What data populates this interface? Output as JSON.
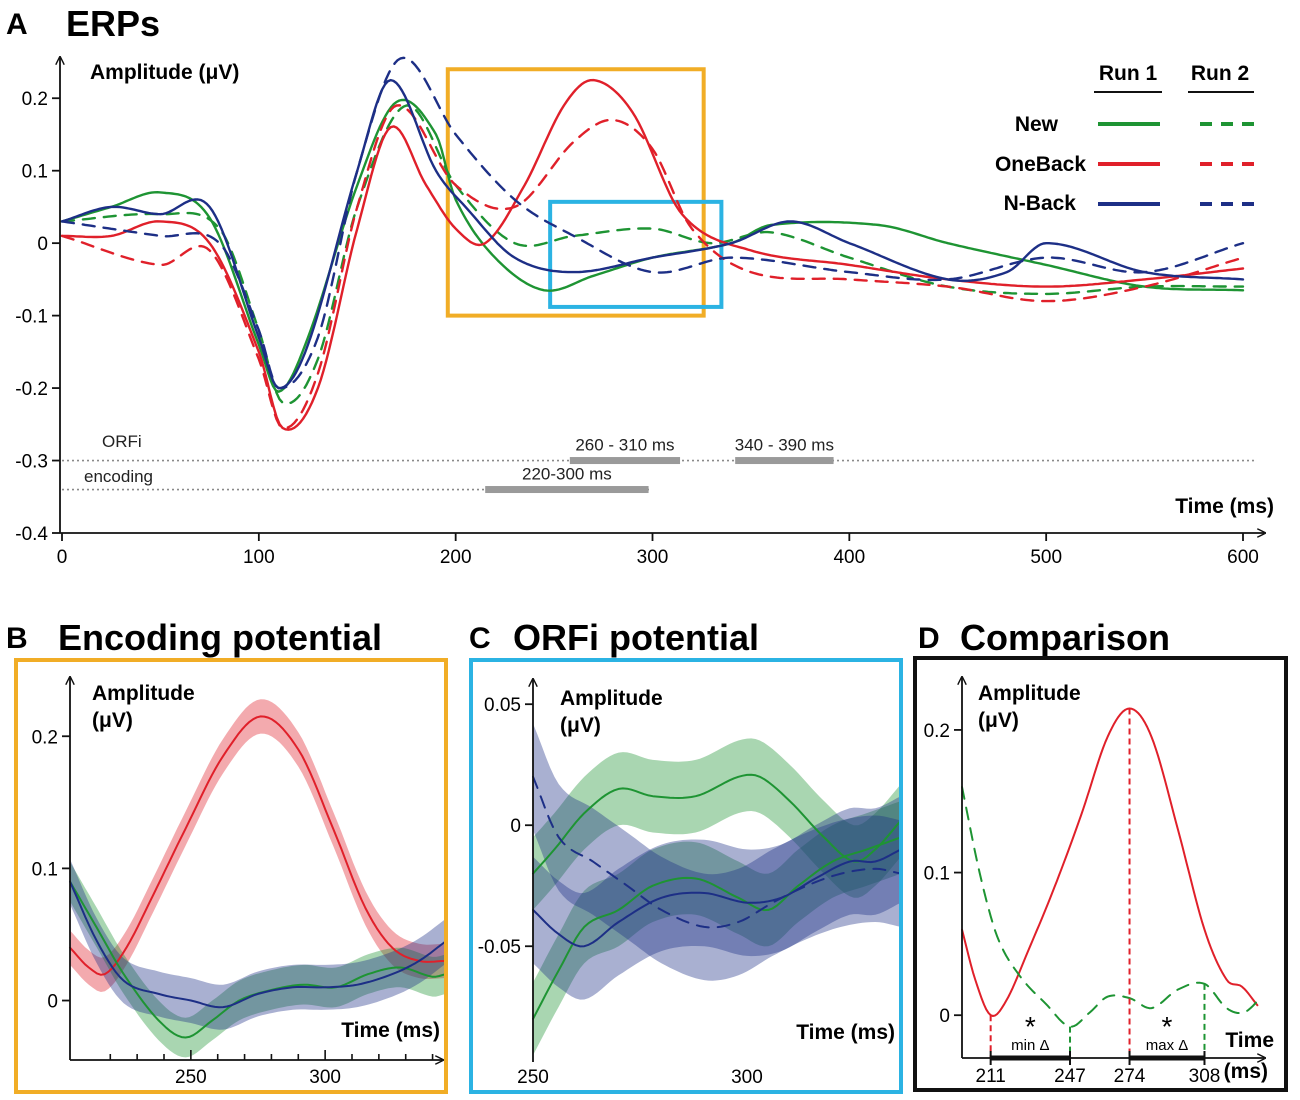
{
  "colors": {
    "new": "#1e9433",
    "oneback": "#e0202a",
    "nback": "#1d2f86",
    "orange": "#f1ad26",
    "cyan": "#2bb3e3",
    "black": "#111111",
    "gray": "#999999"
  },
  "chart_data": [
    {
      "id": "A",
      "panel_label": "A",
      "title": "ERPs",
      "type": "line",
      "ylabel": "Amplitude (μV)",
      "xlabel": "Time (ms)",
      "xlim": [
        0,
        600
      ],
      "ylim": [
        -0.4,
        0.25
      ],
      "xticks": [
        0,
        100,
        200,
        300,
        400,
        500,
        600
      ],
      "yticks": [
        0.2,
        0.1,
        0,
        -0.1,
        -0.2,
        -0.3,
        -0.4
      ],
      "ytick_labels": [
        "0.2",
        "0.1",
        "0",
        "-0.1",
        "-0.2",
        "-0.3",
        "-0.4"
      ],
      "legend": {
        "col1": "Run 1",
        "col2": "Run 2",
        "rows": [
          "New",
          "OneBack",
          "N-Back"
        ]
      },
      "series": [
        {
          "name": "New",
          "run": "Run 1",
          "color": "new",
          "dash": false,
          "x": [
            0,
            25,
            50,
            75,
            100,
            110,
            125,
            150,
            170,
            190,
            200,
            220,
            245,
            270,
            300,
            340,
            360,
            415,
            450,
            500,
            550,
            600
          ],
          "y": [
            0.03,
            0.05,
            0.07,
            0.035,
            -0.14,
            -0.205,
            -0.13,
            0.08,
            0.195,
            0.15,
            0.06,
            -0.02,
            -0.065,
            -0.045,
            -0.02,
            0.0,
            0.025,
            0.025,
            0.0,
            -0.03,
            -0.06,
            -0.065
          ]
        },
        {
          "name": "New",
          "run": "Run 2",
          "color": "new",
          "dash": true,
          "x": [
            0,
            50,
            80,
            100,
            112,
            130,
            150,
            175,
            200,
            230,
            260,
            300,
            330,
            360,
            400,
            450,
            500,
            550,
            600
          ],
          "y": [
            0.03,
            0.04,
            0.02,
            -0.12,
            -0.22,
            -0.16,
            0.05,
            0.19,
            0.08,
            0.0,
            0.01,
            0.02,
            0.0,
            0.015,
            -0.02,
            -0.06,
            -0.07,
            -0.06,
            -0.06
          ]
        },
        {
          "name": "OneBack",
          "run": "Run 1",
          "color": "oneback",
          "dash": false,
          "x": [
            0,
            25,
            50,
            75,
            100,
            112,
            130,
            150,
            167,
            185,
            200,
            215,
            235,
            255,
            270,
            290,
            315,
            350,
            400,
            450,
            500,
            550,
            600
          ],
          "y": [
            0.01,
            0.01,
            0.03,
            0.0,
            -0.15,
            -0.255,
            -0.2,
            0.02,
            0.16,
            0.08,
            0.02,
            0.0,
            0.08,
            0.19,
            0.225,
            0.18,
            0.04,
            -0.01,
            -0.03,
            -0.05,
            -0.06,
            -0.05,
            -0.035
          ]
        },
        {
          "name": "OneBack",
          "run": "Run 2",
          "color": "oneback",
          "dash": true,
          "x": [
            0,
            50,
            75,
            100,
            112,
            130,
            150,
            170,
            200,
            230,
            260,
            280,
            300,
            320,
            350,
            400,
            450,
            500,
            550,
            600
          ],
          "y": [
            0.01,
            -0.03,
            -0.01,
            -0.16,
            -0.255,
            -0.18,
            0.05,
            0.19,
            0.08,
            0.05,
            0.14,
            0.17,
            0.13,
            0.02,
            -0.04,
            -0.05,
            -0.06,
            -0.08,
            -0.06,
            -0.02
          ]
        },
        {
          "name": "N-Back",
          "run": "Run 1",
          "color": "nback",
          "dash": false,
          "x": [
            0,
            25,
            50,
            75,
            100,
            110,
            125,
            150,
            167,
            190,
            205,
            230,
            260,
            300,
            340,
            370,
            400,
            450,
            480,
            500,
            550,
            600
          ],
          "y": [
            0.03,
            0.05,
            0.04,
            0.05,
            -0.13,
            -0.2,
            -0.14,
            0.1,
            0.225,
            0.1,
            0.05,
            -0.02,
            -0.04,
            -0.02,
            0.0,
            0.03,
            0.0,
            -0.05,
            -0.04,
            0.0,
            -0.04,
            -0.05
          ]
        },
        {
          "name": "N-Back",
          "run": "Run 2",
          "color": "nback",
          "dash": true,
          "x": [
            0,
            50,
            80,
            100,
            110,
            130,
            150,
            172,
            200,
            230,
            260,
            300,
            340,
            400,
            450,
            500,
            550,
            600
          ],
          "y": [
            0.03,
            0.01,
            0.0,
            -0.12,
            -0.2,
            -0.13,
            0.1,
            0.255,
            0.15,
            0.06,
            0.01,
            -0.04,
            -0.02,
            -0.04,
            -0.05,
            -0.02,
            -0.04,
            0.0
          ]
        }
      ],
      "annotations": {
        "orfi_label": "ORFi",
        "encoding_label": "encoding",
        "orfi_windows": [
          {
            "range": [
              258,
              314
            ],
            "label": "260 - 310 ms"
          },
          {
            "range": [
              342,
              392
            ],
            "label": "340 - 390 ms"
          }
        ],
        "encoding_windows": [
          {
            "range": [
              215,
              298
            ],
            "label": "220-300 ms"
          }
        ],
        "orfi_level": -0.3,
        "encoding_level": -0.34,
        "boxes": [
          {
            "color": "orange",
            "x": [
              196,
              326
            ],
            "y": [
              -0.1,
              0.24
            ]
          },
          {
            "color": "cyan",
            "x": [
              248,
              335
            ],
            "y": [
              -0.088,
              0.057
            ]
          }
        ]
      }
    },
    {
      "id": "B",
      "panel_label": "B",
      "title": "Encoding potential",
      "type": "line",
      "ylabel_line1": "Amplitude",
      "ylabel_line2": "(μV)",
      "xlabel": "Time (ms)",
      "xlim": [
        205,
        345
      ],
      "ylim": [
        -0.045,
        0.235
      ],
      "xticks": [
        250,
        300
      ],
      "yticks": [
        0.2,
        0.1,
        0
      ],
      "ytick_labels": [
        "0.2",
        "0.1",
        "0"
      ],
      "series": [
        {
          "name": "OneBack",
          "color": "oneback",
          "x": [
            205,
            212,
            218,
            226,
            236,
            248,
            262,
            276,
            290,
            303,
            315,
            325,
            335,
            345
          ],
          "y": [
            0.04,
            0.025,
            0.02,
            0.04,
            0.08,
            0.13,
            0.185,
            0.215,
            0.19,
            0.13,
            0.07,
            0.04,
            0.03,
            0.03
          ],
          "band": 0.013
        },
        {
          "name": "New",
          "color": "new",
          "x": [
            205,
            215,
            225,
            238,
            248,
            258,
            268,
            280,
            292,
            304,
            316,
            328,
            340,
            345
          ],
          "y": [
            0.09,
            0.055,
            0.02,
            -0.015,
            -0.028,
            -0.015,
            0.0,
            0.008,
            0.012,
            0.01,
            0.02,
            0.025,
            0.018,
            0.02
          ],
          "band": 0.015
        },
        {
          "name": "N-Back",
          "color": "nback",
          "x": [
            205,
            215,
            225,
            238,
            250,
            262,
            275,
            288,
            300,
            312,
            325,
            335,
            345
          ],
          "y": [
            0.09,
            0.045,
            0.015,
            0.005,
            0.0,
            -0.005,
            0.005,
            0.01,
            0.01,
            0.012,
            0.02,
            0.03,
            0.045
          ],
          "band": 0.017
        }
      ]
    },
    {
      "id": "C",
      "panel_label": "C",
      "title": "ORFi potential",
      "type": "line",
      "ylabel_line1": "Amplitude",
      "ylabel_line2": "(μV)",
      "xlabel": "Time (ms)",
      "xlim": [
        250,
        336
      ],
      "ylim": [
        -0.097,
        0.06
      ],
      "xticks": [
        250,
        300
      ],
      "yticks": [
        0.05,
        0,
        -0.05
      ],
      "ytick_labels": [
        "0.05",
        "0",
        "-0.05"
      ],
      "series": [
        {
          "name": "New",
          "run": "Run 1",
          "color": "new",
          "dash": false,
          "band": 0.015,
          "x": [
            250,
            255,
            262,
            270,
            278,
            288,
            298,
            303,
            310,
            318,
            325,
            330,
            336
          ],
          "y": [
            -0.02,
            -0.01,
            0.005,
            0.015,
            0.012,
            0.012,
            0.02,
            0.02,
            0.01,
            -0.005,
            -0.015,
            -0.01,
            0.002
          ]
        },
        {
          "name": "New",
          "run": "Run 2",
          "color": "new",
          "dash": false,
          "band": 0.015,
          "x": [
            250,
            256,
            262,
            270,
            278,
            288,
            298,
            305,
            312,
            320,
            328,
            336
          ],
          "y": [
            -0.08,
            -0.06,
            -0.042,
            -0.035,
            -0.025,
            -0.022,
            -0.03,
            -0.035,
            -0.025,
            -0.015,
            -0.01,
            -0.005
          ]
        },
        {
          "name": "N-Back",
          "run": "Run 1",
          "color": "nback",
          "dash": false,
          "band": 0.022,
          "x": [
            250,
            256,
            262,
            270,
            280,
            290,
            300,
            308,
            316,
            324,
            330,
            336
          ],
          "y": [
            -0.035,
            -0.045,
            -0.05,
            -0.04,
            -0.03,
            -0.028,
            -0.032,
            -0.03,
            -0.022,
            -0.015,
            -0.015,
            -0.01
          ]
        },
        {
          "name": "N-Back",
          "run": "Run 2",
          "color": "nback",
          "dash": true,
          "band": 0.022,
          "x": [
            250,
            256,
            264,
            272,
            280,
            290,
            298,
            306,
            314,
            322,
            330,
            336
          ],
          "y": [
            0.02,
            -0.005,
            -0.015,
            -0.025,
            -0.035,
            -0.042,
            -0.04,
            -0.032,
            -0.025,
            -0.02,
            -0.018,
            -0.02
          ]
        }
      ]
    },
    {
      "id": "D",
      "panel_label": "D",
      "title": "Comparison",
      "type": "line",
      "ylabel_line1": "Amplitude",
      "ylabel_line2": "(μV)",
      "xlabel_line1": "Time",
      "xlabel_line2": "(ms)",
      "xlim": [
        198,
        335
      ],
      "ylim": [
        -0.03,
        0.235
      ],
      "xticks": [
        211,
        247,
        274,
        308
      ],
      "xtick_labels": [
        "211",
        "247",
        "274",
        "308"
      ],
      "yticks": [
        0.2,
        0.1,
        0
      ],
      "ytick_labels": [
        "0.2",
        "0.1",
        "0"
      ],
      "series": [
        {
          "name": "OneBack",
          "color": "oneback",
          "dash": false,
          "x": [
            198,
            204,
            211,
            218,
            228,
            240,
            252,
            264,
            274,
            284,
            296,
            308,
            318,
            325,
            332
          ],
          "y": [
            0.06,
            0.025,
            0.0,
            0.01,
            0.045,
            0.09,
            0.14,
            0.195,
            0.215,
            0.195,
            0.13,
            0.06,
            0.025,
            0.02,
            0.007
          ]
        },
        {
          "name": "New",
          "color": "new",
          "dash": true,
          "x": [
            198,
            206,
            214,
            224,
            236,
            247,
            256,
            264,
            274,
            284,
            296,
            308,
            318,
            326,
            334
          ],
          "y": [
            0.16,
            0.1,
            0.055,
            0.028,
            0.008,
            -0.008,
            0.002,
            0.013,
            0.012,
            0.005,
            0.018,
            0.022,
            0.005,
            0.002,
            0.013
          ]
        }
      ],
      "markers": [
        {
          "x": 211,
          "y": 0.0,
          "color": "oneback"
        },
        {
          "x": 247,
          "y": -0.008,
          "color": "new"
        },
        {
          "x": 274,
          "y": 0.215,
          "color": "oneback"
        },
        {
          "x": 308,
          "y": 0.022,
          "color": "new"
        }
      ],
      "brackets": [
        {
          "range": [
            211,
            247
          ],
          "star": "*",
          "label": "min Δ"
        },
        {
          "range": [
            274,
            308
          ],
          "star": "*",
          "label": "max Δ"
        }
      ]
    }
  ]
}
